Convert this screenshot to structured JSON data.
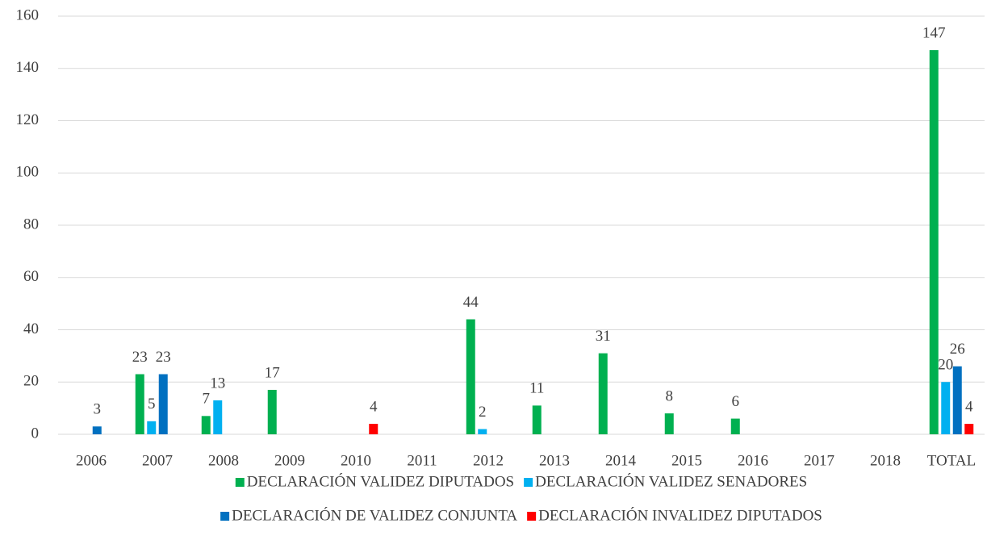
{
  "chart_data": {
    "type": "bar",
    "categories": [
      "2006",
      "2007",
      "2008",
      "2009",
      "2010",
      "2011",
      "2012",
      "2013",
      "2014",
      "2015",
      "2016",
      "2017",
      "2018",
      "TOTAL"
    ],
    "series": [
      {
        "name": "DECLARACIÓN VALIDEZ DIPUTADOS",
        "color": "#00b050",
        "values": [
          null,
          23,
          7,
          17,
          null,
          null,
          44,
          11,
          31,
          8,
          6,
          null,
          null,
          147
        ]
      },
      {
        "name": "DECLARACIÓN VALIDEZ SENADORES",
        "color": "#00b0f0",
        "values": [
          null,
          5,
          13,
          null,
          null,
          null,
          2,
          null,
          null,
          null,
          null,
          null,
          null,
          20
        ]
      },
      {
        "name": "DECLARACIÓN DE VALIDEZ CONJUNTA",
        "color": "#0070c0",
        "values": [
          3,
          23,
          null,
          null,
          null,
          null,
          null,
          null,
          null,
          null,
          null,
          null,
          null,
          26
        ]
      },
      {
        "name": "DECLARACIÓN INVALIDEZ DIPUTADOS",
        "color": "#ff0000",
        "values": [
          null,
          null,
          null,
          null,
          4,
          null,
          null,
          null,
          null,
          null,
          null,
          null,
          null,
          4
        ]
      }
    ],
    "ylim": [
      0,
      160
    ],
    "yticks": [
      0,
      20,
      40,
      60,
      80,
      100,
      120,
      140,
      160
    ],
    "grid": true,
    "legend": "bottom"
  }
}
